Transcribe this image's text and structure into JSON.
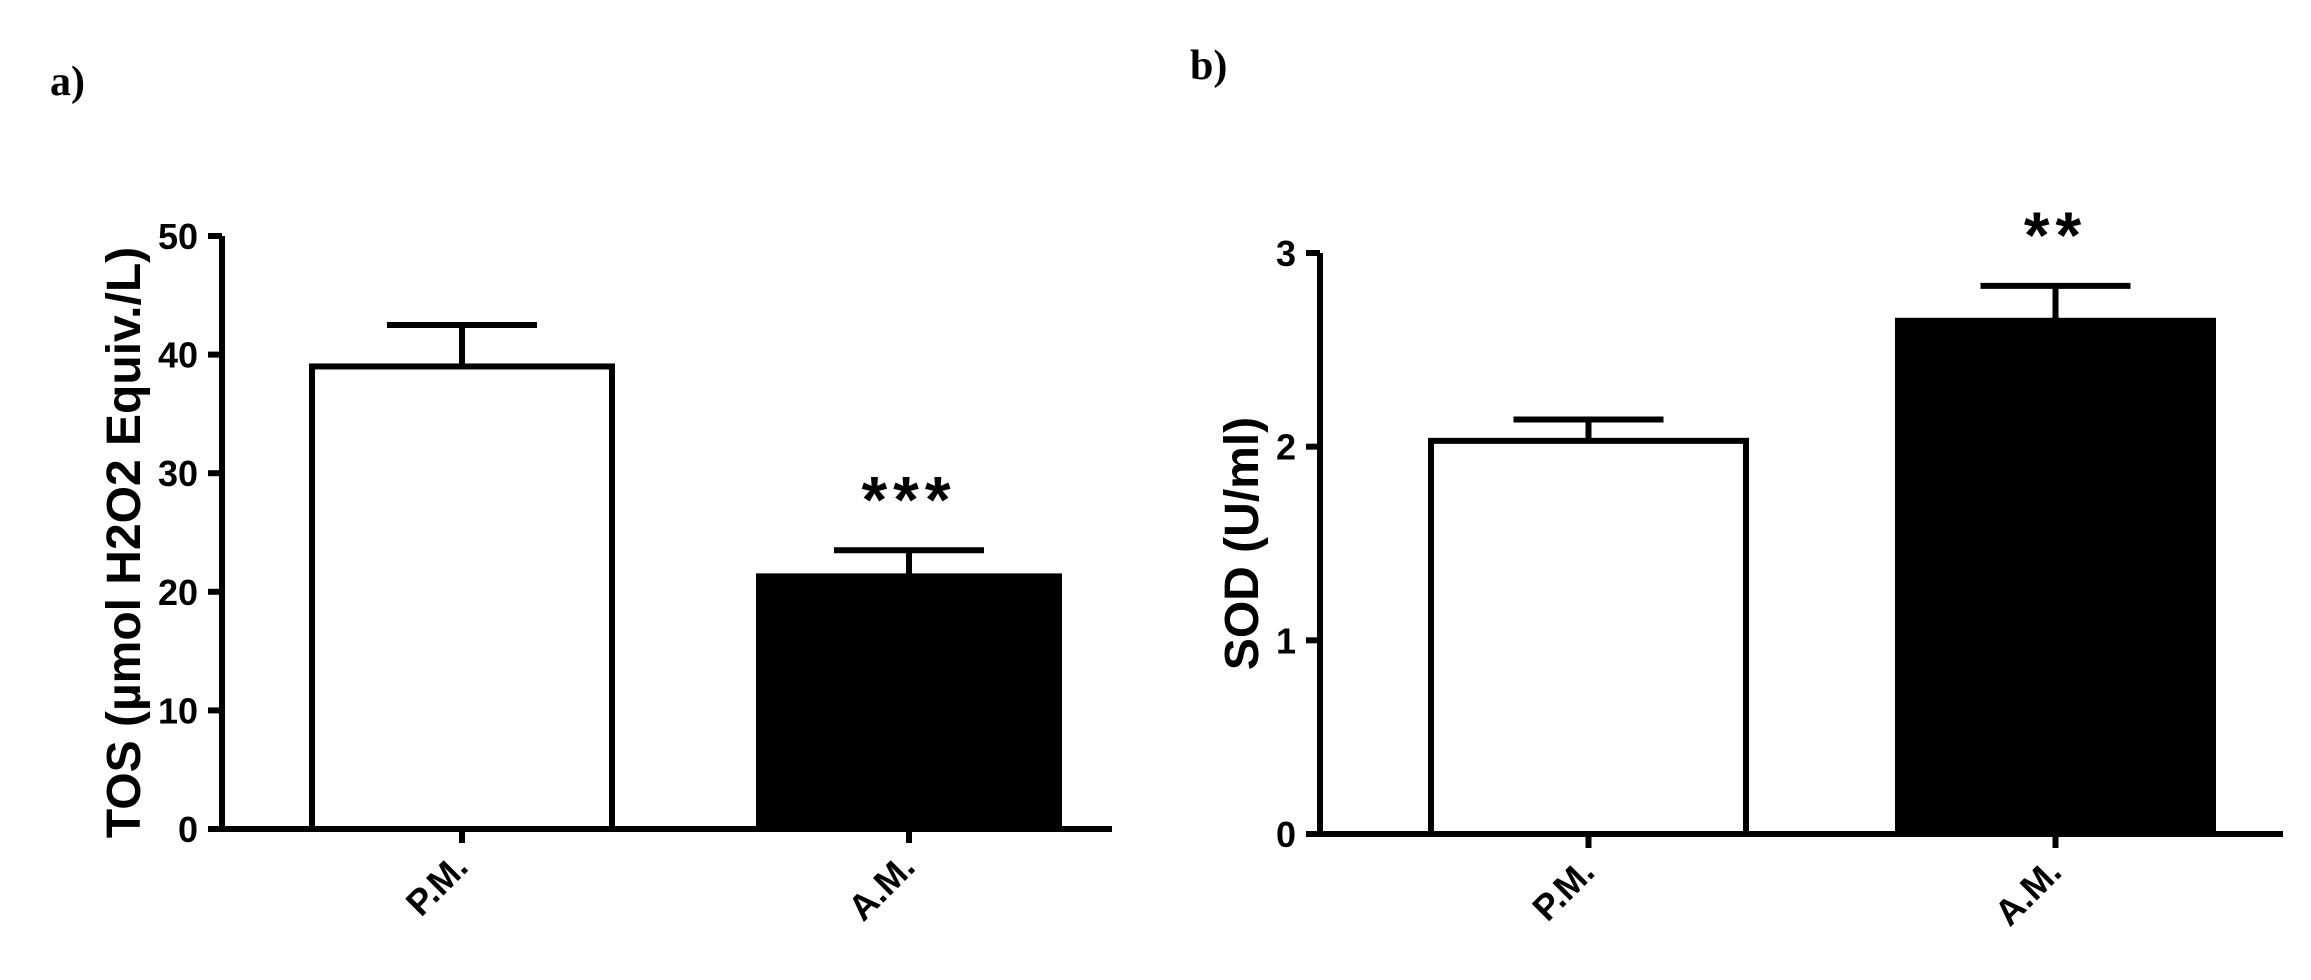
{
  "panels": [
    {
      "letter": "a)",
      "chart_data": {
        "type": "bar",
        "categories": [
          "P.M.",
          "A.M."
        ],
        "values": [
          39,
          21.3
        ],
        "errors": [
          3.5,
          2.2
        ],
        "bar_colors": [
          "#ffffff",
          "#000000"
        ],
        "significance": [
          "",
          "***"
        ],
        "title": "",
        "xlabel": "",
        "ylabel": "TOS (µmol H2O2 Equiv./L)",
        "ylim": [
          0,
          50
        ],
        "yticks": [
          0,
          10,
          20,
          30,
          40,
          50
        ],
        "grid": false,
        "legend": "none"
      }
    },
    {
      "letter": "b)",
      "chart_data": {
        "type": "bar",
        "categories": [
          "P.M.",
          "A.M."
        ],
        "values": [
          2.03,
          2.65
        ],
        "errors": [
          0.11,
          0.18
        ],
        "bar_colors": [
          "#ffffff",
          "#000000"
        ],
        "significance": [
          "",
          "**"
        ],
        "title": "",
        "xlabel": "",
        "ylabel": "SOD (U/ml)",
        "ylim": [
          0,
          3
        ],
        "yticks": [
          0,
          1,
          2,
          3
        ],
        "grid": false,
        "legend": "none"
      }
    }
  ]
}
